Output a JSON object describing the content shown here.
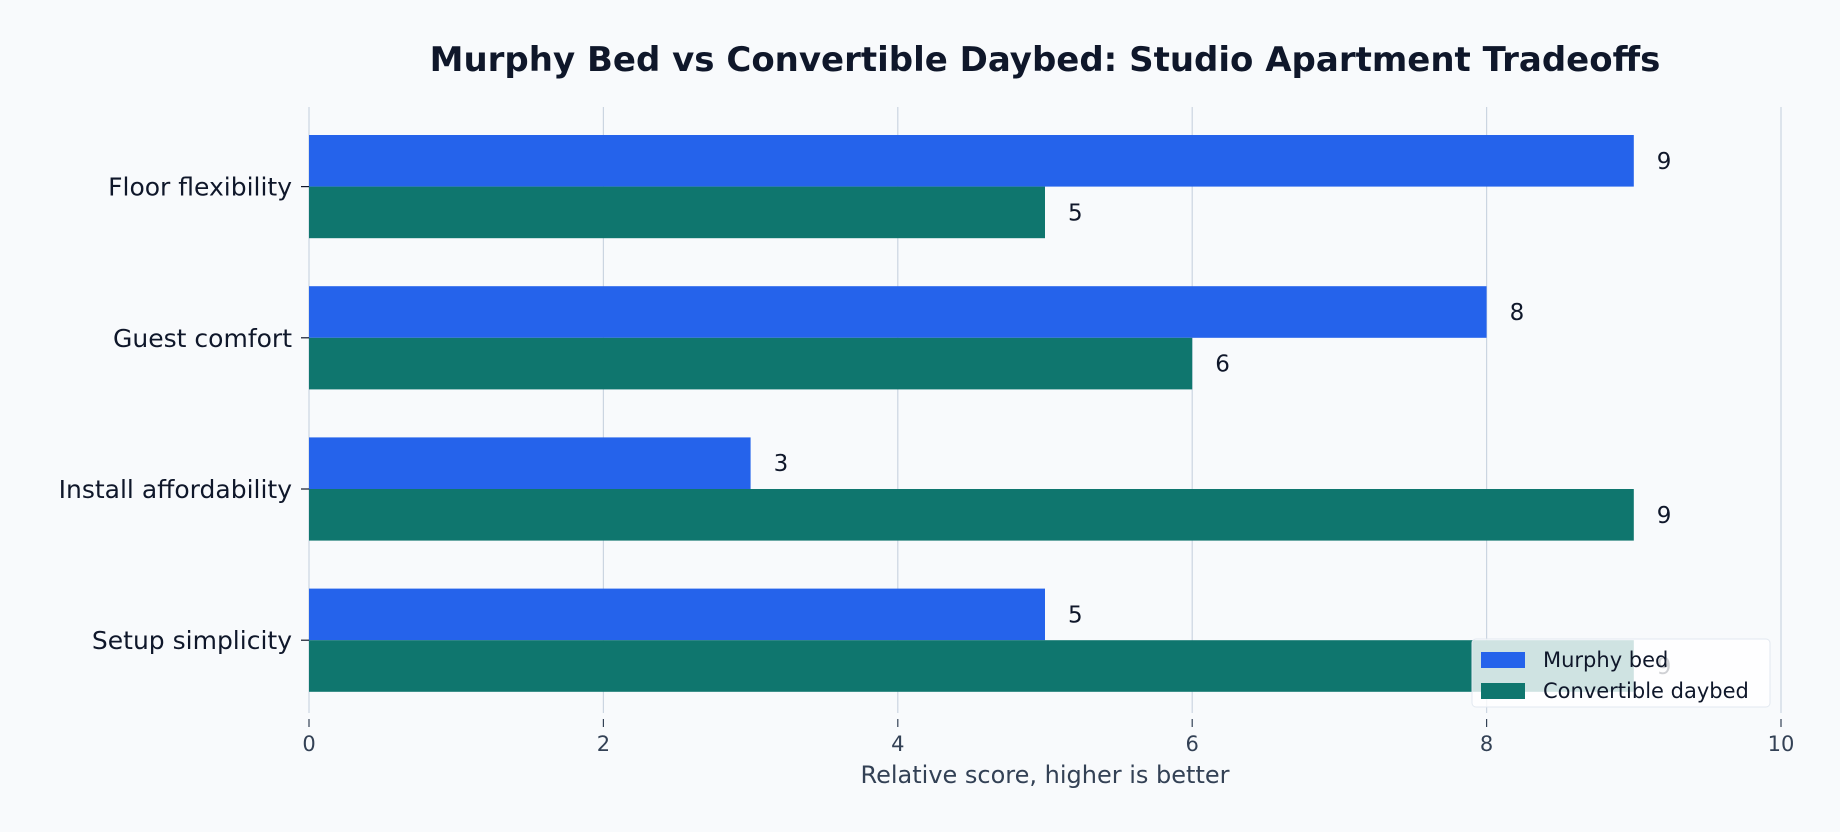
{
  "chart_data": {
    "type": "bar",
    "orientation": "horizontal",
    "title": "Murphy Bed vs Convertible Daybed: Studio Apartment Tradeoffs",
    "xlabel": "Relative score, higher is better",
    "ylabel": "",
    "categories": [
      "Floor flexibility",
      "Guest comfort",
      "Install affordability",
      "Setup simplicity"
    ],
    "series": [
      {
        "name": "Murphy bed",
        "color": "#2563eb",
        "values": [
          9,
          8,
          3,
          5
        ]
      },
      {
        "name": "Convertible daybed",
        "color": "#0f766e",
        "values": [
          5,
          6,
          9,
          9
        ]
      }
    ],
    "xlim": [
      0,
      10
    ],
    "xticks": [
      0,
      2,
      4,
      6,
      8,
      10
    ],
    "grid": "vertical",
    "legend_position": "lower-right"
  }
}
